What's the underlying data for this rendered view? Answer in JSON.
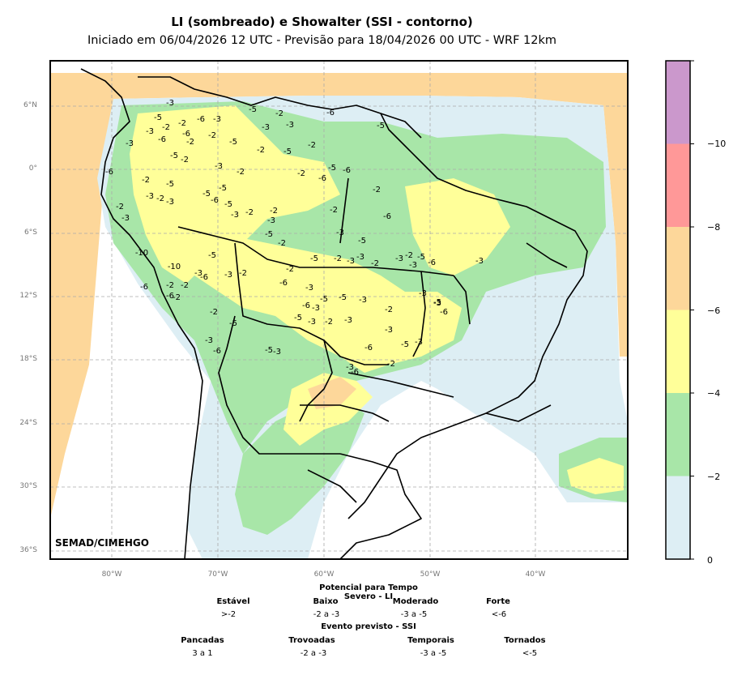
{
  "header": {
    "title": "LI (sombreado) e Showalter (SSI - contorno)",
    "subtitle": "Iniciado em 06/04/2026 12 UTC - Previsão para 18/04/2026 00 UTC - WRF 12km"
  },
  "map": {
    "credit": "SEMAD/CIMEHGO",
    "lat_labels": [
      "6°N",
      "0°",
      "6°S",
      "12°S",
      "18°S",
      "24°S",
      "30°S",
      "36°S"
    ],
    "lon_labels": [
      "80°W",
      "70°W",
      "60°W",
      "50°W",
      "40°W"
    ],
    "contour_labels": [
      "-3",
      "-5",
      "-2",
      "-6",
      "-3",
      "-5",
      "-2",
      "-3",
      "-6",
      "-5",
      "-3",
      "-2",
      "-6",
      "-2",
      "-5",
      "-3",
      "-2",
      "-5",
      "-2",
      "-3",
      "-5",
      "-2",
      "-2",
      "-3",
      "-6",
      "-2",
      "-5",
      "-3",
      "-2",
      "-3",
      "-6",
      "-2",
      "-5",
      "-2",
      "-10",
      "-3",
      "-2",
      "-5",
      "-6",
      "-3",
      "-2",
      "-5",
      "-3",
      "-2",
      "-5",
      "-2",
      "-6",
      "-5",
      "-6",
      "-3",
      "-2",
      "-5",
      "-6",
      "-2",
      "-3",
      "-5",
      "-2",
      "-3",
      "-2",
      "-3",
      "-2",
      "-5",
      "-6",
      "-3",
      "-2",
      "-3",
      "-5",
      "-6",
      "-10",
      "-3",
      "-2",
      "-6",
      "-2",
      "-6",
      "-2",
      "-3",
      "-5",
      "-6",
      "-3",
      "-5",
      "-3",
      "-2",
      "-5",
      "-3",
      "-2",
      "-3",
      "-5",
      "-6",
      "-3",
      "-3",
      "-5",
      "-6",
      "-3",
      "-2",
      "-3",
      "-6",
      "-3",
      "-5",
      "-3",
      "-6",
      "-2",
      "-5",
      "-6",
      "-2",
      "-3",
      "-3"
    ],
    "colors": {
      "lt0": "#ddeef4",
      "lt2": "#a8e6a8",
      "lt4": "#ffff99",
      "lt6": "#fdd79a",
      "lt8": "#ff9898",
      "lt10": "#cb98cc",
      "boundary": "#000000"
    }
  },
  "colorbar": {
    "ticks": [
      "0",
      "−2",
      "−4",
      "−6",
      "−8",
      "−10"
    ],
    "colors": [
      "#ddeef4",
      "#a8e6a8",
      "#ffff99",
      "#fdd79a",
      "#ff9898",
      "#cb98cc"
    ]
  },
  "legend": {
    "li_title": "Potencial para Tempo Severo - LI",
    "li_cats": [
      {
        "name": "Estável",
        "value": ">-2"
      },
      {
        "name": "Baixo",
        "value": "-2 a -3"
      },
      {
        "name": "Moderado",
        "value": "-3 a -5"
      },
      {
        "name": "Forte",
        "value": "<-6"
      }
    ],
    "ssi_title": "Evento previsto - SSI",
    "ssi_cats": [
      {
        "name": "Pancadas",
        "value": "3 a 1"
      },
      {
        "name": "Trovoadas",
        "value": "-2 a -3"
      },
      {
        "name": "Temporais",
        "value": "-3 a -5"
      },
      {
        "name": "Tornados",
        "value": "<-5"
      }
    ]
  }
}
